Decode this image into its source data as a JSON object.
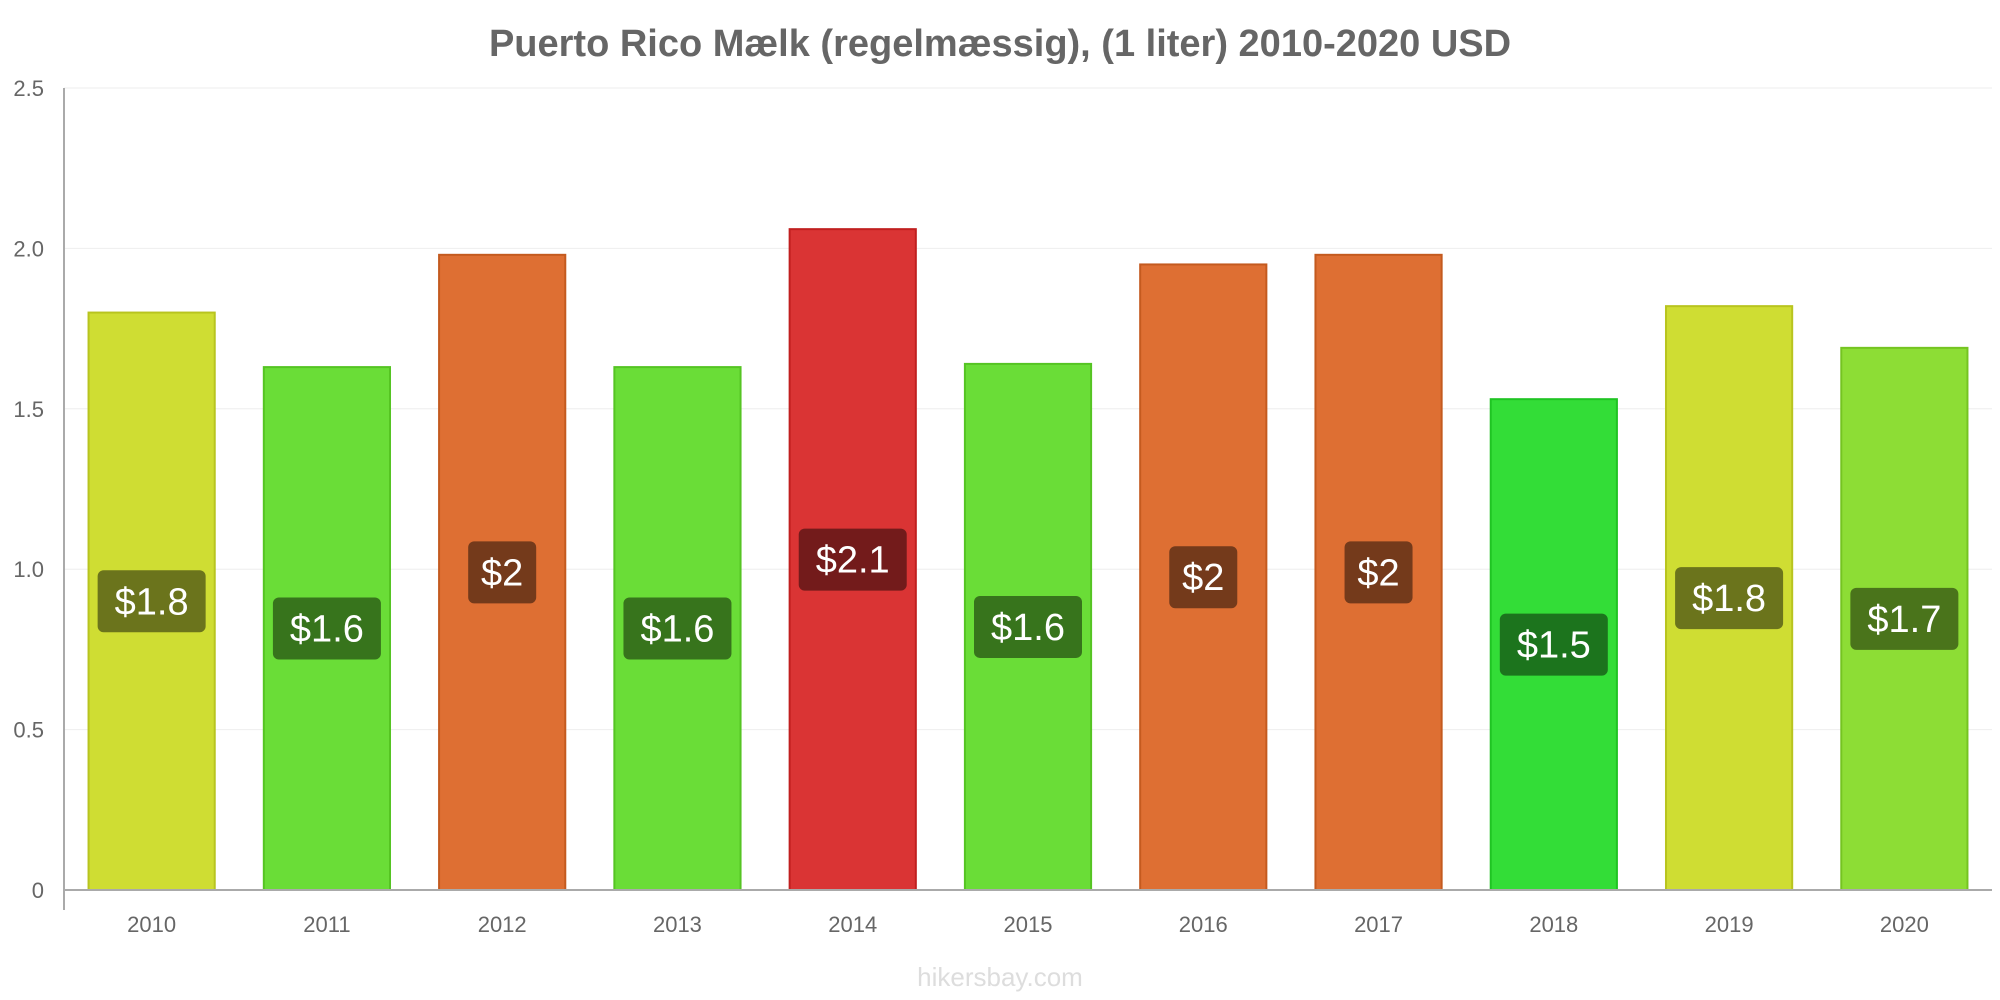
{
  "chart_data": {
    "type": "bar",
    "title": "Puerto Rico Mælk (regelmæssig), (1 liter) 2010-2020 USD",
    "xlabel": "",
    "ylabel": "",
    "categories": [
      "2010",
      "2011",
      "2012",
      "2013",
      "2014",
      "2015",
      "2016",
      "2017",
      "2018",
      "2019",
      "2020"
    ],
    "values": [
      1.8,
      1.63,
      1.98,
      1.63,
      2.06,
      1.64,
      1.95,
      1.98,
      1.53,
      1.82,
      1.69
    ],
    "data_labels": [
      "$1.8",
      "$1.6",
      "$2",
      "$1.6",
      "$2.1",
      "$1.6",
      "$2",
      "$2",
      "$1.5",
      "$1.8",
      "$1.7"
    ],
    "ylim": [
      0,
      2.5
    ],
    "yticks": [
      0,
      0.5,
      1.0,
      1.5,
      2.0,
      2.5
    ],
    "ytick_labels": [
      "0",
      "0.5",
      "1.0",
      "1.5",
      "2.0",
      "2.5"
    ],
    "grid": true,
    "legend": "none",
    "bar_colors": [
      "#cfdd33",
      "#6add37",
      "#de6f33",
      "#6add37",
      "#da3434",
      "#6add37",
      "#de6f33",
      "#de6f33",
      "#33dd37",
      "#cfdd33",
      "#8ddd35"
    ],
    "bar_border_colors": [
      "#b8c41f",
      "#55c423",
      "#c45a1f",
      "#55c423",
      "#c01f1f",
      "#55c423",
      "#c45a1f",
      "#c45a1f",
      "#1fc423",
      "#b8c41f",
      "#75c421"
    ],
    "label_bg_colors": [
      "#636a1a",
      "#336a1a",
      "#6a3519",
      "#336a1a",
      "#6a1919",
      "#336a1a",
      "#6a3519",
      "#6a3519",
      "#1a6a1b",
      "#636a1a",
      "#446a19"
    ]
  },
  "watermark": "hikersbay.com"
}
